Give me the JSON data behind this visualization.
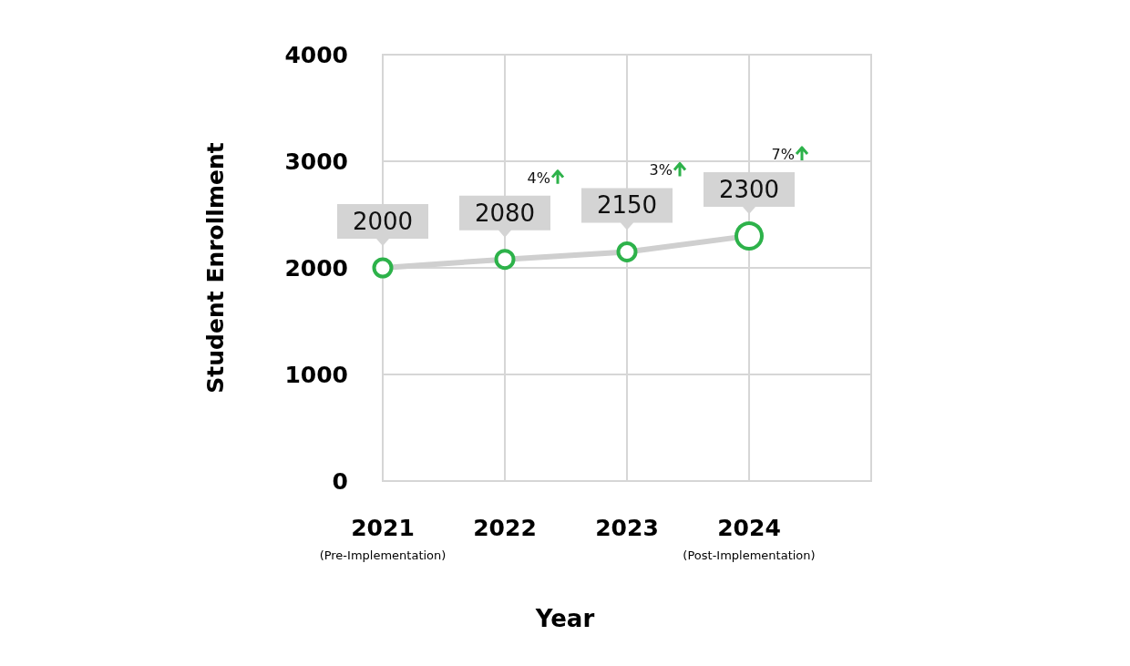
{
  "chart_data": {
    "type": "line",
    "xlabel": "Year",
    "ylabel": "Student Enrollment",
    "categories": [
      "2021\n(Pre-Implementation)",
      "2022",
      "2023",
      "2024\n(Post-Implementation)"
    ],
    "series": [
      {
        "color": "#2db24a",
        "values": [
          2000,
          2080,
          2150,
          2300
        ]
      }
    ],
    "ylim": [
      0,
      4000
    ],
    "yticks": [
      0,
      1000,
      2000,
      3000,
      4000
    ],
    "grid": true,
    "marker": "circle",
    "data_labels": true,
    "annotations": [
      "4%",
      "3%",
      "7%"
    ]
  }
}
